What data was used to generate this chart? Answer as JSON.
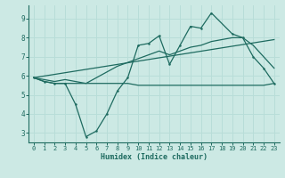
{
  "xlabel": "Humidex (Indice chaleur)",
  "bg_color": "#cce9e4",
  "grid_color": "#b8ddd8",
  "line_color": "#1e6b60",
  "xlim": [
    -0.5,
    23.5
  ],
  "ylim": [
    2.5,
    9.7
  ],
  "yticks": [
    3,
    4,
    5,
    6,
    7,
    8,
    9
  ],
  "xticks": [
    0,
    1,
    2,
    3,
    4,
    5,
    6,
    7,
    8,
    9,
    10,
    11,
    12,
    13,
    14,
    15,
    16,
    17,
    18,
    19,
    20,
    21,
    22,
    23
  ],
  "flat_x": [
    0,
    1,
    2,
    3,
    4,
    5,
    6,
    7,
    8,
    9,
    10,
    11,
    12,
    13,
    14,
    15,
    16,
    17,
    19,
    20,
    21,
    22,
    23
  ],
  "flat_y": [
    5.9,
    5.7,
    5.6,
    5.6,
    5.6,
    5.6,
    5.6,
    5.6,
    5.6,
    5.6,
    5.5,
    5.5,
    5.5,
    5.5,
    5.5,
    5.5,
    5.5,
    5.5,
    5.5,
    5.5,
    5.5,
    5.5,
    5.6
  ],
  "jagged_x": [
    0,
    1,
    2,
    3,
    4,
    5,
    6,
    7,
    8,
    9,
    10,
    11,
    12,
    13,
    14,
    15,
    16,
    17,
    19,
    20,
    21,
    22,
    23
  ],
  "jagged_y": [
    5.9,
    5.7,
    5.6,
    5.6,
    4.5,
    2.8,
    3.1,
    4.0,
    5.2,
    5.9,
    7.6,
    7.7,
    8.1,
    6.6,
    7.6,
    8.6,
    8.5,
    9.3,
    8.2,
    8.0,
    7.0,
    6.4,
    5.6
  ],
  "trend_x": [
    0,
    23
  ],
  "trend_y": [
    5.9,
    7.9
  ],
  "smooth_x": [
    0,
    1,
    2,
    3,
    4,
    5,
    6,
    7,
    8,
    9,
    10,
    11,
    12,
    13,
    14,
    15,
    16,
    17,
    19,
    20,
    21,
    22,
    23
  ],
  "smooth_y": [
    5.9,
    5.8,
    5.7,
    5.8,
    5.7,
    5.6,
    5.9,
    6.2,
    6.5,
    6.7,
    6.9,
    7.1,
    7.3,
    7.1,
    7.3,
    7.5,
    7.6,
    7.8,
    8.0,
    8.0,
    7.6,
    7.0,
    6.4
  ]
}
